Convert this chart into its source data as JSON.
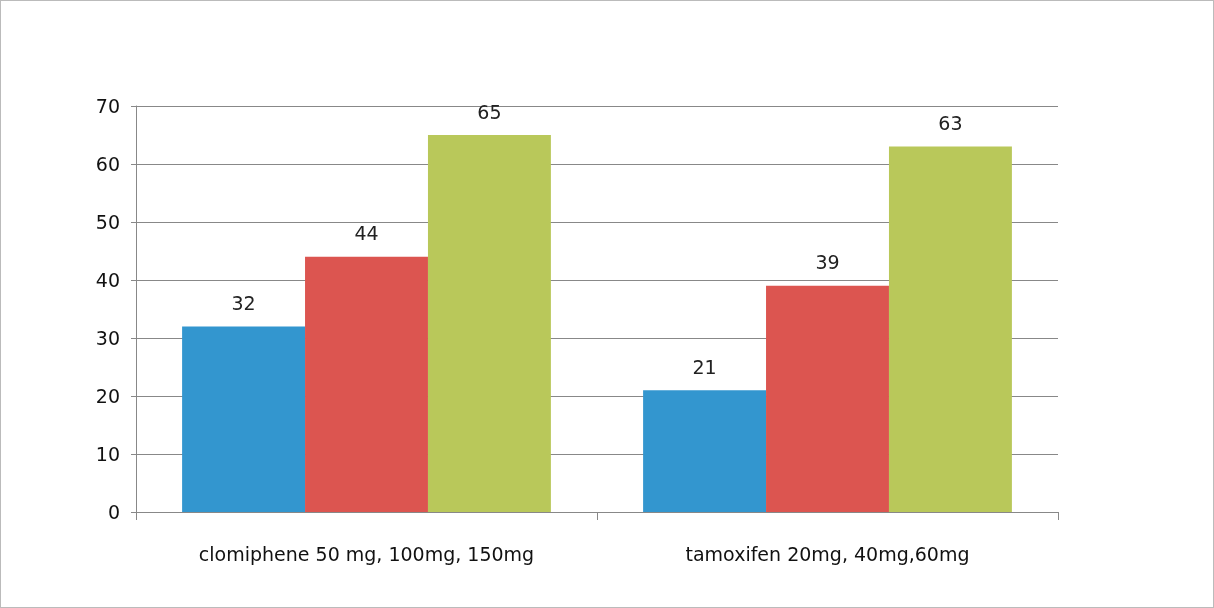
{
  "chart_data": {
    "type": "bar",
    "categories": [
      "clomiphene 50 mg, 100mg, 150mg",
      "tamoxifen 20mg, 40mg,60mg"
    ],
    "series": [
      {
        "color": "#3396cf",
        "values": [
          32,
          21
        ]
      },
      {
        "color": "#dc5550",
        "values": [
          44,
          39
        ]
      },
      {
        "color": "#b9c85a",
        "values": [
          65,
          63
        ]
      }
    ],
    "ylim": [
      0,
      70
    ],
    "yticks": [
      0,
      10,
      20,
      30,
      40,
      50,
      60,
      70
    ],
    "grid": "y",
    "data_labels": true
  }
}
